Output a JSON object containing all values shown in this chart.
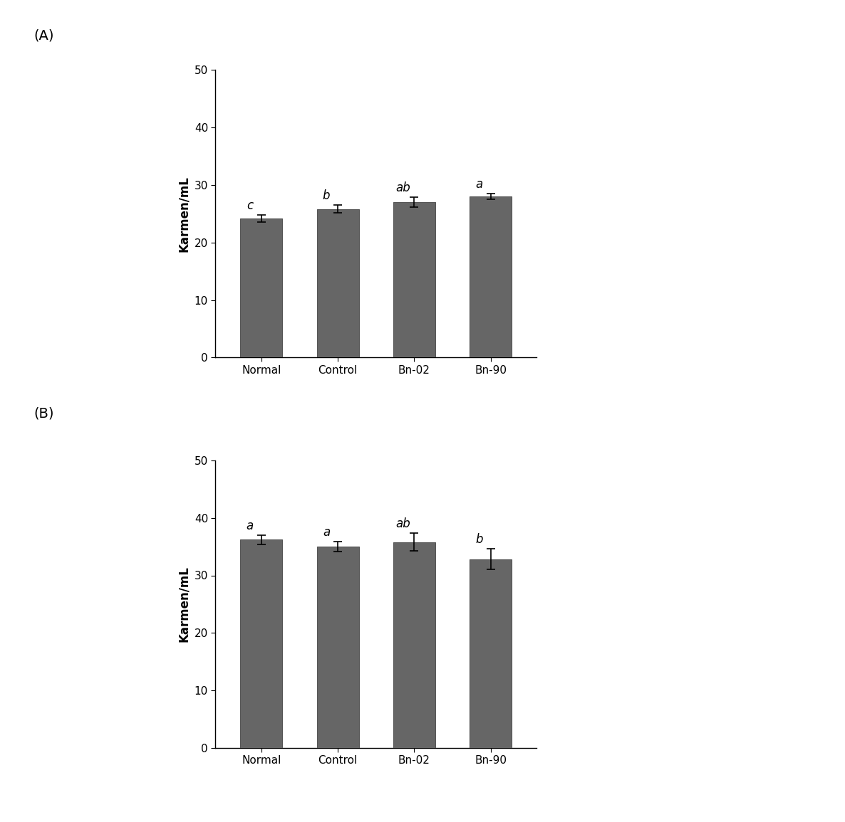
{
  "panel_A": {
    "categories": [
      "Normal",
      "Control",
      "Bn-02",
      "Bn-90"
    ],
    "values": [
      24.2,
      25.8,
      27.0,
      28.0
    ],
    "errors": [
      0.6,
      0.7,
      0.9,
      0.5
    ],
    "labels": [
      "c",
      "b",
      "ab",
      "a"
    ],
    "ylabel": "Karmen/mL",
    "ylim": [
      0,
      50
    ],
    "yticks": [
      0,
      10,
      20,
      30,
      40,
      50
    ],
    "panel_label": "(A)"
  },
  "panel_B": {
    "categories": [
      "Normal",
      "Control",
      "Bn-02",
      "Bn-90"
    ],
    "values": [
      36.2,
      35.0,
      35.8,
      32.8
    ],
    "errors": [
      0.8,
      0.9,
      1.5,
      1.8
    ],
    "labels": [
      "a",
      "a",
      "ab",
      "b"
    ],
    "ylabel": "Karmen/mL",
    "ylim": [
      0,
      50
    ],
    "yticks": [
      0,
      10,
      20,
      30,
      40,
      50
    ],
    "panel_label": "(B)"
  },
  "bar_color": "#666666",
  "bar_width": 0.55,
  "bar_edgecolor": "#555555",
  "error_capsize": 4,
  "error_color": "black",
  "error_linewidth": 1.2,
  "label_fontsize": 12,
  "axis_fontsize": 12,
  "tick_fontsize": 11,
  "panel_label_fontsize": 14,
  "background_color": "#ffffff"
}
